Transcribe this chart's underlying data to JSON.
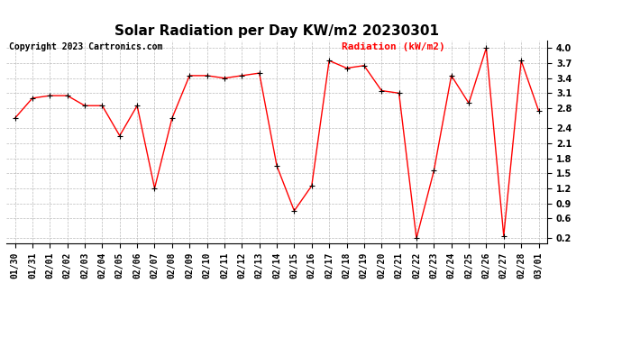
{
  "title": "Solar Radiation per Day KW/m2 20230301",
  "copyright": "Copyright 2023 Cartronics.com",
  "legend_label": "Radiation (kW/m2)",
  "dates": [
    "01/30",
    "01/31",
    "02/01",
    "02/02",
    "02/03",
    "02/04",
    "02/05",
    "02/06",
    "02/07",
    "02/08",
    "02/09",
    "02/10",
    "02/11",
    "02/12",
    "02/13",
    "02/14",
    "02/15",
    "02/16",
    "02/17",
    "02/18",
    "02/19",
    "02/20",
    "02/21",
    "02/22",
    "02/23",
    "02/24",
    "02/25",
    "02/26",
    "02/27",
    "02/28",
    "03/01"
  ],
  "values": [
    2.6,
    3.0,
    3.05,
    3.05,
    2.85,
    2.85,
    2.25,
    2.85,
    1.2,
    2.6,
    3.45,
    3.45,
    3.4,
    3.45,
    3.5,
    1.65,
    0.75,
    1.25,
    3.75,
    3.6,
    3.65,
    3.15,
    3.1,
    0.2,
    1.55,
    3.45,
    2.9,
    4.0,
    0.25,
    3.75,
    2.75
  ],
  "line_color": "red",
  "marker_color": "black",
  "grid_color": "#bbbbbb",
  "background_color": "white",
  "ylim": [
    0.1,
    4.15
  ],
  "yticks": [
    0.2,
    0.6,
    0.9,
    1.2,
    1.5,
    1.8,
    2.1,
    2.4,
    2.8,
    3.1,
    3.4,
    3.7,
    4.0
  ],
  "title_fontsize": 11,
  "copyright_fontsize": 7,
  "legend_fontsize": 8,
  "tick_fontsize": 7
}
